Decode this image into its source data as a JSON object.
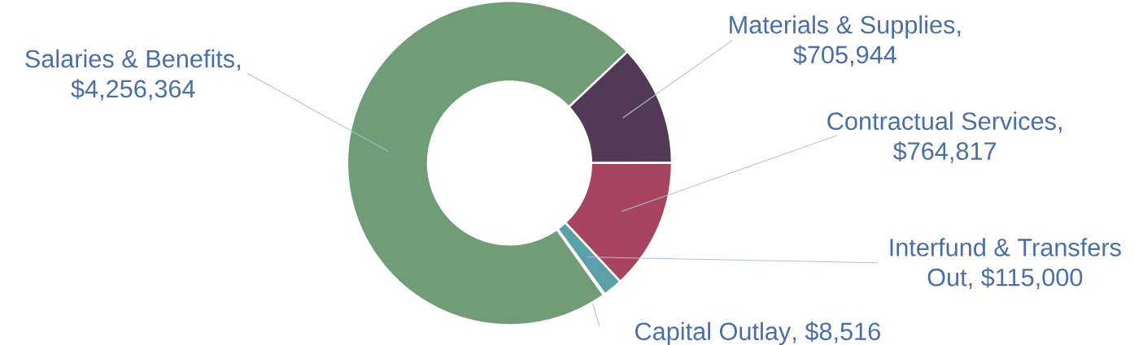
{
  "chart_data": {
    "type": "donut",
    "categories": [
      "Materials & Supplies",
      "Contractual Services",
      "Interfund & Transfers Out",
      "Capital Outlay",
      "Salaries & Benefits"
    ],
    "values": [
      705944,
      764817,
      115000,
      8516,
      4256364
    ],
    "value_labels": [
      ", $705,944",
      ", $764,817",
      ", $115,000",
      ", $8,516",
      ", $4,256,364"
    ],
    "colors": [
      "#523a56",
      "#a84462",
      "#5aa1a9",
      "#4f81bd",
      "#719c78"
    ]
  }
}
